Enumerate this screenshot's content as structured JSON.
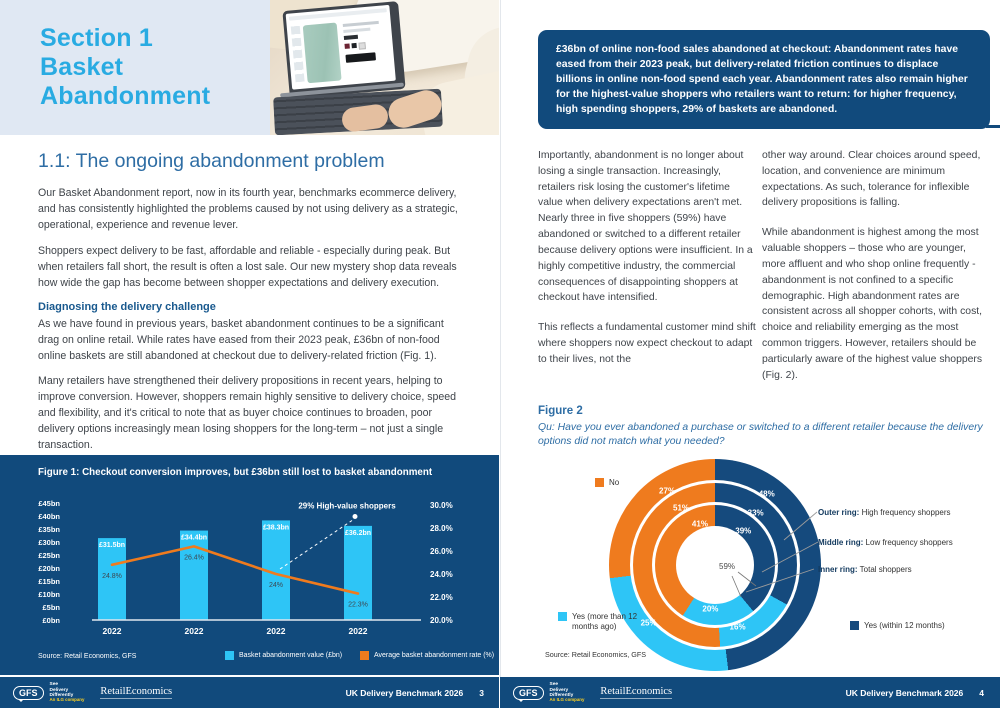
{
  "footer": {
    "brand": "GFS",
    "tagline": [
      "See",
      "Delivery",
      "Differently"
    ],
    "company_line": "An ILG company",
    "partner_logo": "RetailEconomics",
    "doc_title": "UK Delivery Benchmark 2026"
  },
  "left_page": {
    "section_title_lines": [
      "Section 1",
      "Basket",
      "Abandonment"
    ],
    "heading": "1.1: The ongoing abandonment problem",
    "paragraphs": [
      "Our Basket Abandonment report, now in its fourth year, benchmarks ecommerce delivery, and has consistently highlighted the problems caused by not using delivery as a strategic, operational, experience and revenue lever.",
      "Shoppers expect delivery to be fast, affordable and reliable - especially during peak. But when retailers fall short, the result is often a lost sale. Our new mystery shop data reveals how wide the gap has become between shopper expectations and delivery execution.",
      "As we have found in previous years, basket abandonment continues to be a significant drag on online retail. While rates have eased from their 2023 peak, £36bn of non-food online baskets are still abandoned at checkout due to delivery-related friction (Fig. 1).",
      "Many retailers have strengthened their delivery propositions in recent years, helping to improve conversion. However, shoppers remain highly sensitive to delivery choice, speed and flexibility, and it's critical to note that as buyer choice continues to broaden, poor delivery options increasingly mean losing shoppers for the long-term – not just a single transaction."
    ],
    "subheading": "Diagnosing the delivery challenge",
    "page_number": "3"
  },
  "right_page": {
    "callout": "£36bn of online non-food sales abandoned at checkout: Abandonment rates have eased from their 2023 peak, but delivery-related friction continues to displace billions in online non-food spend each year. Abandonment rates also remain higher for the highest-value shoppers who retailers want to return: for higher frequency, high spending shoppers, 29% of baskets are abandoned.",
    "col1": [
      "Importantly, abandonment is no longer about losing a single transaction. Increasingly, retailers risk losing the customer's lifetime value when delivery expectations aren't met. Nearly three in five shoppers (59%) have abandoned or switched to a different retailer because delivery options were insufficient. In a highly competitive industry, the commercial consequences of disappointing shoppers at checkout have intensified.",
      "This reflects a fundamental customer mind shift where shoppers now expect checkout to adapt to their lives, not the"
    ],
    "col2": [
      "other way around. Clear choices around speed, location, and convenience are minimum expectations. As such, tolerance for inflexible delivery propositions is falling.",
      "While abandonment is highest among the most valuable shoppers – those who are younger, more affluent and who shop online frequently - abandonment is not confined to a specific demographic. High abandonment rates are consistent across all shopper cohorts, with cost, choice and reliability emerging as the most common triggers. However, retailers should be particularly aware of the highest value shoppers (Fig. 2)."
    ],
    "figure2_label": "Figure 2",
    "figure2_question": "Qu: Have you ever abandoned a purchase or switched to a different retailer because the delivery options did not match what you needed?",
    "page_number": "4"
  },
  "chart_data": [
    {
      "id": "figure-1",
      "type": "bar",
      "title": "Figure 1: Checkout conversion improves, but £36bn still lost to basket abandonment",
      "categories": [
        "2022",
        "2022",
        "2022",
        "2022"
      ],
      "series": [
        {
          "name": "Basket abandonment value (£bn)",
          "type": "bar",
          "color": "#2ec5f6",
          "values": [
            31.5,
            34.4,
            38.3,
            36.2
          ],
          "labels": [
            "£31.5bn",
            "£34.4bn",
            "£38.3bn",
            "£36.2bn"
          ]
        },
        {
          "name": "Average basket abandonment rate (%)",
          "type": "line",
          "color": "#ef7b1e",
          "values": [
            24.8,
            26.4,
            24,
            22.3
          ],
          "labels": [
            "24.8%",
            "26.4%",
            "24%",
            "22.3%"
          ]
        }
      ],
      "left_axis": {
        "ticks": [
          "£45bn",
          "£40bn",
          "£35bn",
          "£30bn",
          "£25bn",
          "£20bn",
          "£15bn",
          "£10bn",
          "£5bn",
          "£0bn"
        ],
        "min": 0,
        "max": 45
      },
      "right_axis": {
        "ticks": [
          "30.0%",
          "28.0%",
          "26.0%",
          "24.0%",
          "22.0%",
          "20.0%"
        ],
        "min": 20,
        "max": 30
      },
      "annotation": {
        "text": "29% High-value shoppers",
        "value": 29,
        "from_index": 2
      },
      "source": "Source: Retail Economics, GFS",
      "grid": false,
      "legend_position": "bottom"
    },
    {
      "id": "figure-2",
      "type": "pie",
      "subtype": "concentric-donut",
      "rings": [
        {
          "name": "Inner ring: Total shoppers",
          "label_radius": 44,
          "segments": [
            {
              "label": "Yes (within 12 months)",
              "value": 39,
              "color": "#154a7d",
              "label_angle": 40
            },
            {
              "label": "Yes (more than 12 months ago)",
              "value": 20,
              "color": "#2ec5f6",
              "label_angle": 186
            },
            {
              "label": "No",
              "value": 41,
              "color": "#ef7b1e",
              "label_angle": 340
            }
          ]
        },
        {
          "name": "Middle ring: Low frequency shoppers",
          "label_radius": 66,
          "segments": [
            {
              "label": "Yes (within 12 months)",
              "value": 33,
              "color": "#154a7d",
              "label_angle": 38
            },
            {
              "label": "Yes (more than 12 months ago)",
              "value": 16,
              "color": "#2ec5f6",
              "label_angle": 160
            },
            {
              "label": "No",
              "value": 51,
              "color": "#ef7b1e",
              "label_angle": 329
            }
          ]
        },
        {
          "name": "Outer ring: High frequency shoppers",
          "label_radius": 88,
          "segments": [
            {
              "label": "Yes (within 12 months)",
              "value": 48,
              "color": "#154a7d",
              "label_angle": 36
            },
            {
              "label": "Yes (more than 12 months ago)",
              "value": 25,
              "color": "#2ec5f6",
              "label_angle": 229
            },
            {
              "label": "No",
              "value": 27,
              "color": "#ef7b1e",
              "label_angle": 327
            }
          ]
        }
      ],
      "legend": [
        {
          "label": "No",
          "color": "#ef7b1e"
        },
        {
          "label": "Yes (more than 12 months ago)",
          "color": "#2ec5f6"
        },
        {
          "label": "Yes (within 12 months)",
          "color": "#154a7d"
        }
      ],
      "ring_captions": [
        {
          "bold": "Outer ring:",
          "text": " High frequency shoppers"
        },
        {
          "bold": "Middle ring:",
          "text": " Low frequency shoppers"
        },
        {
          "bold": "Inner ring:",
          "text": " Total shoppers"
        }
      ],
      "annotation": "59%",
      "source": "Source: Retail Economics, GFS"
    }
  ]
}
